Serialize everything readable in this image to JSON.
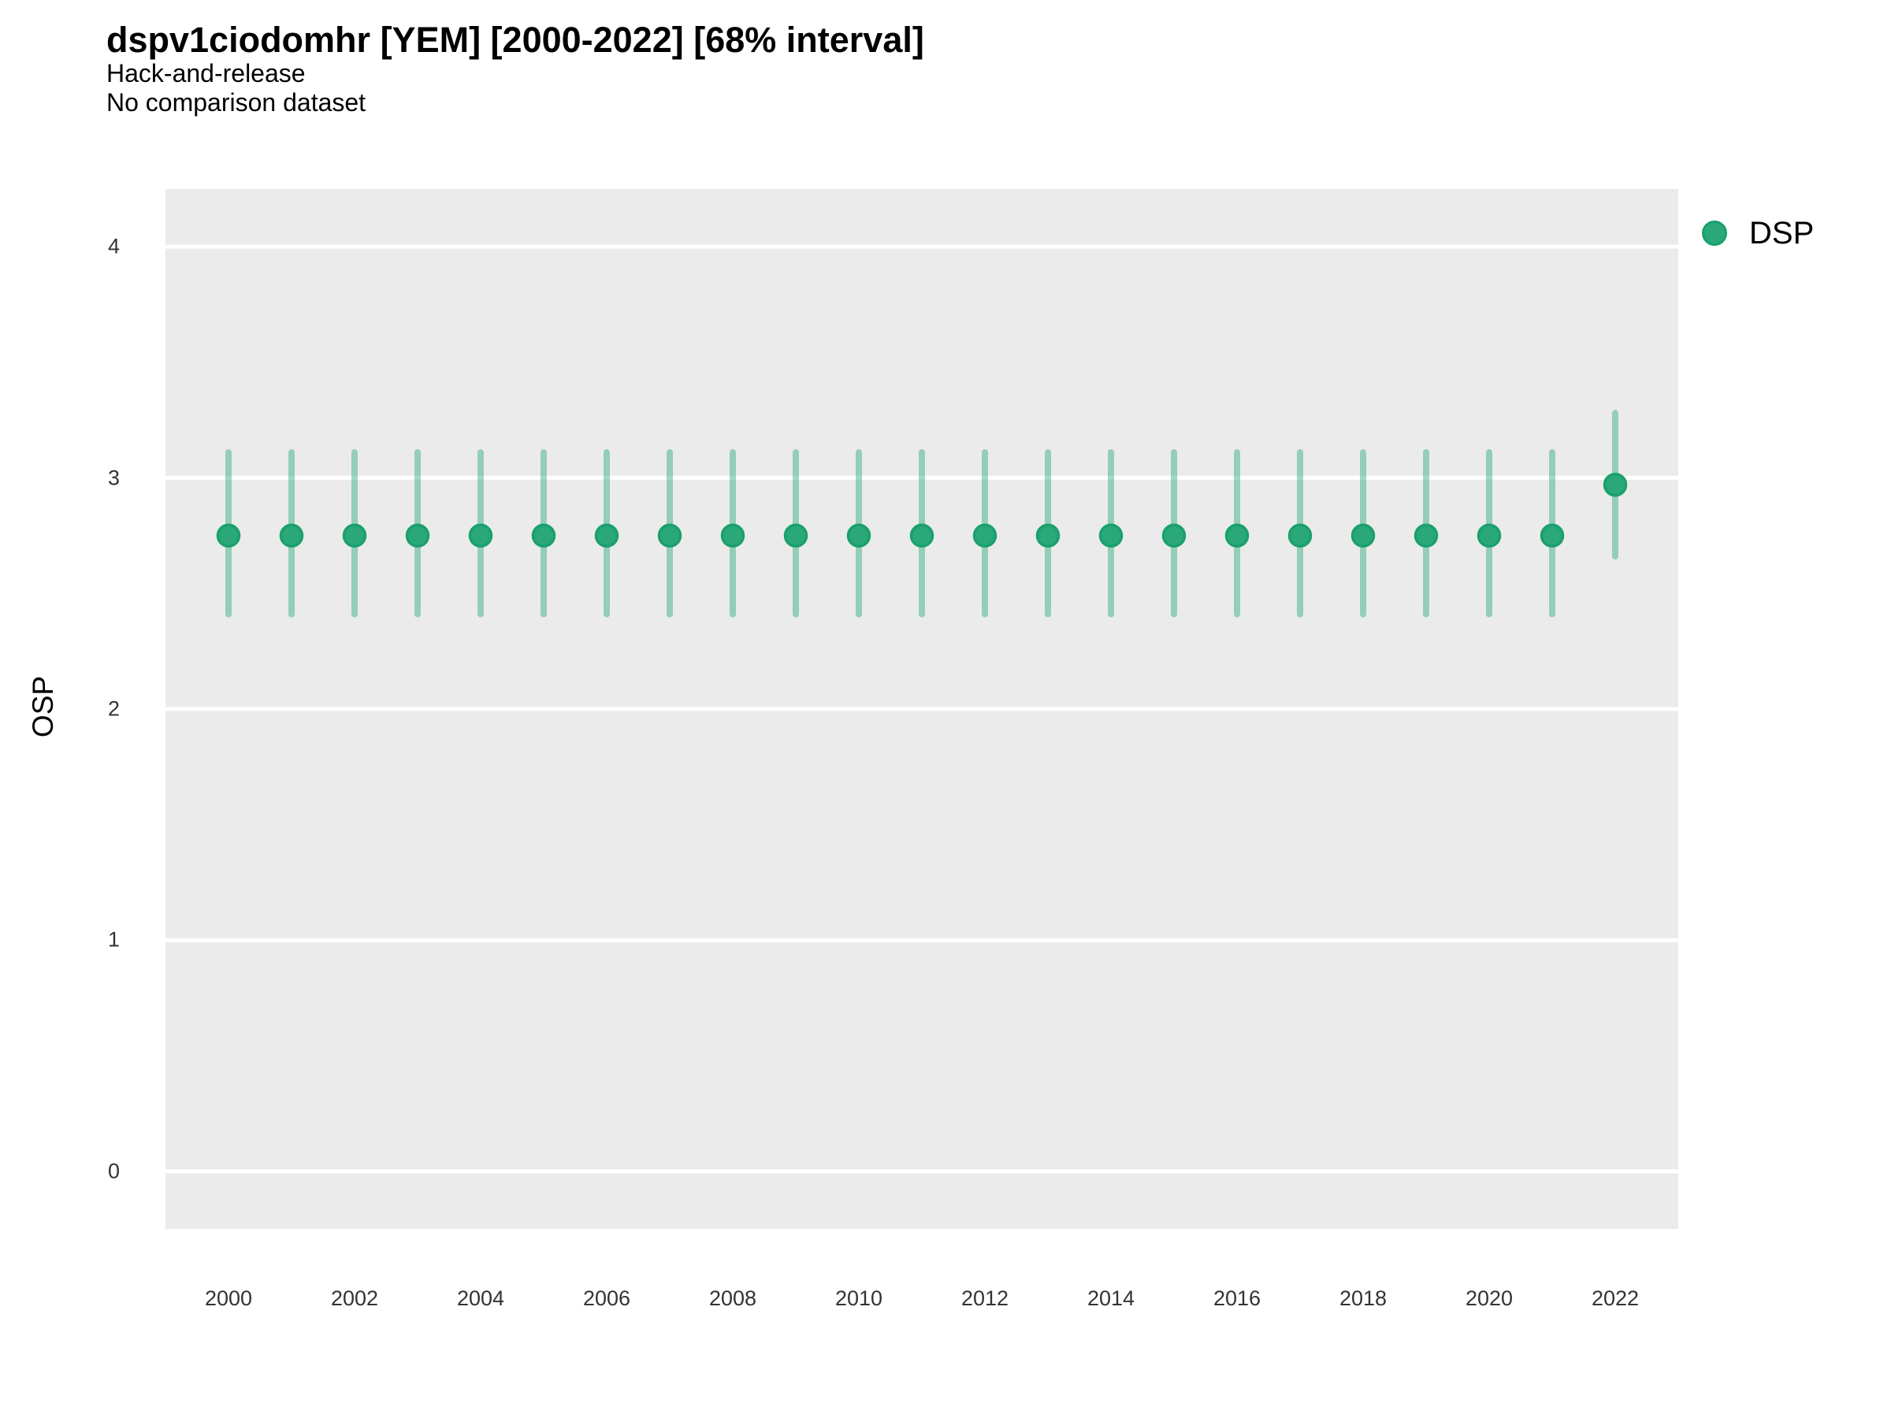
{
  "header": {
    "title": "dspv1ciodomhr [YEM] [2000-2022] [68% interval]",
    "subtitle_line1": "Hack-and-release",
    "subtitle_line2": "No comparison dataset"
  },
  "axes": {
    "y_title": "OSP",
    "x_title": ""
  },
  "legend": {
    "label": "DSP"
  },
  "colors": {
    "point_fill": "#2aa87a",
    "point_stroke": "#1aa06c",
    "interval": "rgba(42,168,122,0.45)",
    "panel_bg": "#ebebeb",
    "gridline": "#ffffff",
    "tick_text": "#333333"
  },
  "chart_data": {
    "type": "scatter",
    "subtype": "pointrange",
    "title": "dspv1ciodomhr [YEM] [2000-2022] [68% interval]",
    "subtitle": [
      "Hack-and-release",
      "No comparison dataset"
    ],
    "xlabel": "",
    "ylabel": "OSP",
    "interval_level": "68%",
    "xlim": [
      1999,
      2023
    ],
    "ylim": [
      -0.249,
      4.249
    ],
    "x_ticks": [
      2000,
      2002,
      2004,
      2006,
      2008,
      2010,
      2012,
      2014,
      2016,
      2018,
      2020,
      2022
    ],
    "y_ticks": [
      0,
      1,
      2,
      3,
      4
    ],
    "grid": "major-horizontal",
    "legend_position": "right-top",
    "series": [
      {
        "name": "DSP",
        "x": [
          2000,
          2001,
          2002,
          2003,
          2004,
          2005,
          2006,
          2007,
          2008,
          2009,
          2010,
          2011,
          2012,
          2013,
          2014,
          2015,
          2016,
          2017,
          2018,
          2019,
          2020,
          2021,
          2022
        ],
        "y": [
          2.75,
          2.75,
          2.75,
          2.75,
          2.75,
          2.75,
          2.75,
          2.75,
          2.75,
          2.75,
          2.75,
          2.75,
          2.75,
          2.75,
          2.75,
          2.75,
          2.75,
          2.75,
          2.75,
          2.75,
          2.75,
          2.75,
          2.97
        ],
        "y_lower": [
          2.41,
          2.41,
          2.41,
          2.41,
          2.41,
          2.41,
          2.41,
          2.41,
          2.41,
          2.41,
          2.41,
          2.41,
          2.41,
          2.41,
          2.41,
          2.41,
          2.41,
          2.41,
          2.41,
          2.41,
          2.41,
          2.41,
          2.66
        ],
        "y_upper": [
          3.11,
          3.11,
          3.11,
          3.11,
          3.11,
          3.11,
          3.11,
          3.11,
          3.11,
          3.11,
          3.11,
          3.11,
          3.11,
          3.11,
          3.11,
          3.11,
          3.11,
          3.11,
          3.11,
          3.11,
          3.11,
          3.11,
          3.28
        ]
      }
    ]
  }
}
